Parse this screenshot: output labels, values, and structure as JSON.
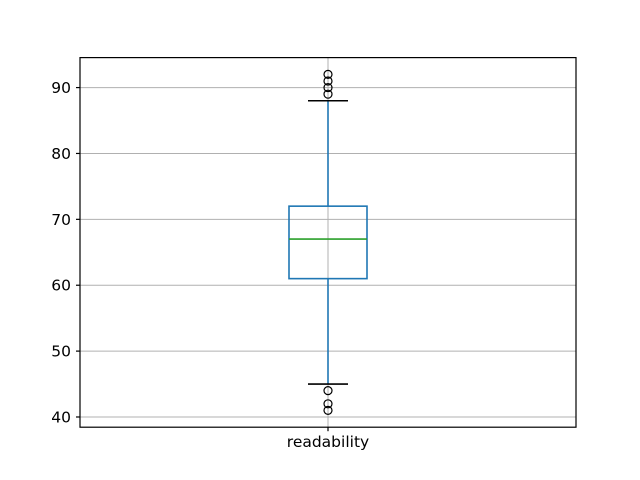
{
  "chart_data": {
    "type": "box",
    "title": "",
    "xlabel": "",
    "ylabel": "",
    "categories": [
      "readability"
    ],
    "series": [
      {
        "name": "readability",
        "q1": 61,
        "median": 67,
        "q3": 72,
        "whisker_low": 45,
        "whisker_high": 88,
        "outliers_low": [
          44,
          42,
          41
        ],
        "outliers_high": [
          92,
          91,
          90,
          89
        ]
      }
    ],
    "yticks": [
      40,
      50,
      60,
      70,
      80,
      90
    ],
    "ylim": [
      38.45,
      94.55
    ],
    "grid": true,
    "legend_position": "none",
    "colors": {
      "box": "#1f77b4",
      "whisker": "#1f77b4",
      "median": "#2ca02c",
      "cap": "#000000",
      "flier": "#000000",
      "grid": "#b0b0b0",
      "spine": "#000000",
      "text": "#000000",
      "background": "#ffffff"
    }
  }
}
